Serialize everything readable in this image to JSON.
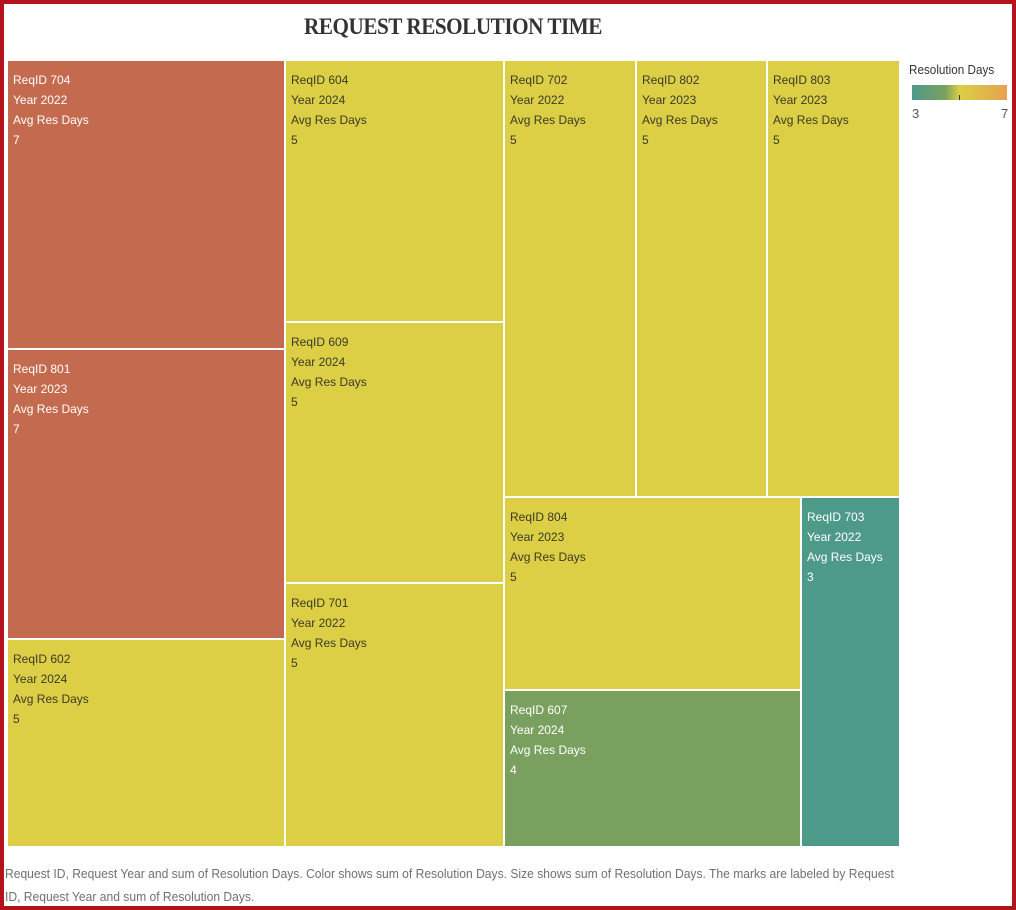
{
  "title": "REQUEST RESOLUTION TIME",
  "legend": {
    "title": "Resolution Days",
    "min_label": "3",
    "max_label": "7",
    "colors": [
      "#4e9a8a",
      "#7aa05f",
      "#dccf46",
      "#eaa050"
    ]
  },
  "caption": "Request ID, Request Year and sum of Resolution Days.  Color shows sum of Resolution Days.  Size shows sum of Resolution Days.  The marks are labeled by Request ID, Request Year and sum of Resolution Days.",
  "chart_data": {
    "type": "treemap",
    "size_measure": "sum of Resolution Days",
    "color_measure": "sum of Resolution Days",
    "color_range": [
      3,
      7
    ],
    "label_prefix": {
      "id": "ReqID",
      "year": "Year",
      "metric": "Avg Res Days"
    },
    "items": [
      {
        "id": "704",
        "year": "2022",
        "value": 7
      },
      {
        "id": "801",
        "year": "2023",
        "value": 7
      },
      {
        "id": "602",
        "year": "2024",
        "value": 5
      },
      {
        "id": "604",
        "year": "2024",
        "value": 5
      },
      {
        "id": "609",
        "year": "2024",
        "value": 5
      },
      {
        "id": "701",
        "year": "2022",
        "value": 5
      },
      {
        "id": "702",
        "year": "2022",
        "value": 5
      },
      {
        "id": "802",
        "year": "2023",
        "value": 5
      },
      {
        "id": "803",
        "year": "2023",
        "value": 5
      },
      {
        "id": "804",
        "year": "2023",
        "value": 5
      },
      {
        "id": "607",
        "year": "2024",
        "value": 4
      },
      {
        "id": "703",
        "year": "2022",
        "value": 3
      }
    ]
  }
}
